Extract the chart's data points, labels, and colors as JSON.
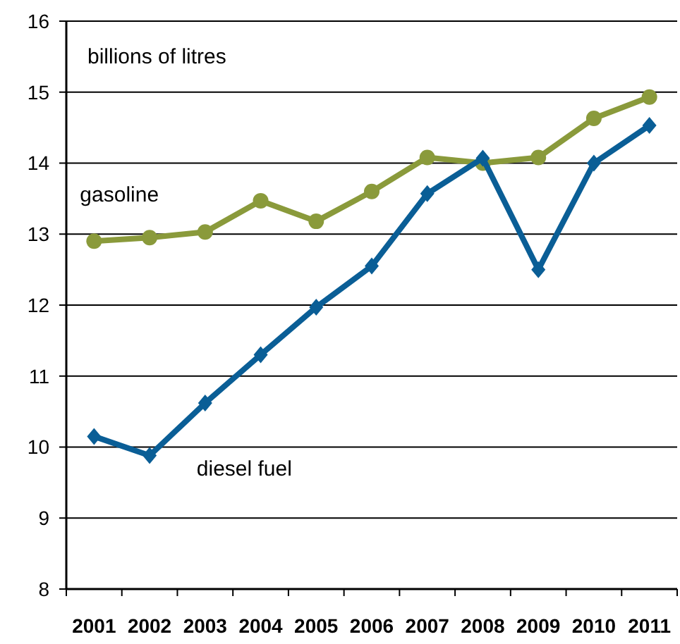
{
  "chart_data": {
    "type": "line",
    "ylabel": "billions of litres",
    "categories": [
      "2001",
      "2002",
      "2003",
      "2004",
      "2005",
      "2006",
      "2007",
      "2008",
      "2009",
      "2010",
      "2011"
    ],
    "series": [
      {
        "name": "gasoline",
        "color": "#8a9a3b",
        "marker": "circle",
        "values": [
          12.9,
          12.95,
          13.03,
          13.47,
          13.18,
          13.6,
          14.08,
          14.0,
          14.08,
          14.63,
          14.93
        ]
      },
      {
        "name": "diesel fuel",
        "color": "#0a5e96",
        "marker": "diamond",
        "values": [
          10.15,
          9.88,
          10.62,
          11.3,
          11.97,
          12.55,
          13.57,
          14.07,
          12.5,
          14.0,
          14.53
        ]
      }
    ],
    "ylim": [
      8,
      16
    ],
    "yticks": [
      8,
      9,
      10,
      11,
      12,
      13,
      14,
      15,
      16
    ],
    "grid": "y"
  }
}
